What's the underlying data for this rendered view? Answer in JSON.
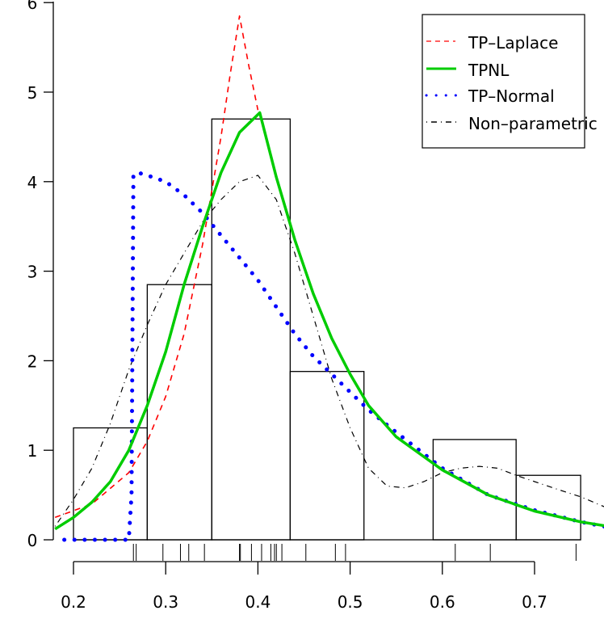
{
  "chart_data": {
    "type": "bar",
    "title": "",
    "xlabel": "",
    "ylabel": "",
    "xlim": [
      0.18,
      0.78
    ],
    "ylim": [
      0,
      6
    ],
    "x_ticks": [
      "0.2",
      "0.3",
      "0.4",
      "0.5",
      "0.6",
      "0.7"
    ],
    "y_ticks": [
      "0",
      "1",
      "2",
      "3",
      "4",
      "5",
      "6"
    ],
    "grid": false,
    "legend_position": "top-right",
    "histogram": {
      "bin_edges": [
        0.2,
        0.28,
        0.35,
        0.435,
        0.515,
        0.59,
        0.68,
        0.75
      ],
      "densities": [
        1.25,
        2.85,
        4.7,
        1.88,
        0,
        1.12,
        0.72
      ]
    },
    "rug": [
      0.265,
      0.268,
      0.297,
      0.316,
      0.325,
      0.342,
      0.38,
      0.381,
      0.393,
      0.404,
      0.414,
      0.418,
      0.42,
      0.426,
      0.452,
      0.484,
      0.495,
      0.614,
      0.652,
      0.745
    ],
    "series": [
      {
        "name": "TP–Laplace",
        "style": "dashed",
        "color": "#ff0000",
        "x": [
          0.18,
          0.22,
          0.26,
          0.28,
          0.3,
          0.32,
          0.34,
          0.36,
          0.37,
          0.38,
          0.39,
          0.4
        ],
        "y": [
          0.25,
          0.4,
          0.75,
          1.1,
          1.6,
          2.3,
          3.3,
          4.5,
          5.2,
          5.85,
          5.3,
          4.8
        ]
      },
      {
        "name": "TPNL",
        "style": "solid",
        "color": "#00cc00",
        "x": [
          0.18,
          0.2,
          0.22,
          0.24,
          0.26,
          0.28,
          0.3,
          0.32,
          0.34,
          0.36,
          0.38,
          0.4,
          0.402,
          0.42,
          0.44,
          0.46,
          0.48,
          0.5,
          0.52,
          0.55,
          0.6,
          0.65,
          0.7,
          0.75,
          0.78
        ],
        "y": [
          0.12,
          0.25,
          0.42,
          0.65,
          1.0,
          1.5,
          2.1,
          2.85,
          3.5,
          4.1,
          4.55,
          4.75,
          4.77,
          4.05,
          3.35,
          2.75,
          2.25,
          1.85,
          1.5,
          1.15,
          0.78,
          0.5,
          0.32,
          0.2,
          0.15
        ]
      },
      {
        "name": "TP–Normal",
        "style": "dotted",
        "color": "#0000ff",
        "x": [
          0.19,
          0.2,
          0.22,
          0.24,
          0.26,
          0.263,
          0.265,
          0.27,
          0.28,
          0.3,
          0.32,
          0.34,
          0.36,
          0.38,
          0.4,
          0.42,
          0.44,
          0.46,
          0.48,
          0.5,
          0.52,
          0.55,
          0.6,
          0.65,
          0.7,
          0.75,
          0.78
        ],
        "y": [
          0,
          0,
          0,
          0,
          0,
          0.5,
          4.08,
          4.1,
          4.07,
          4.0,
          3.85,
          3.65,
          3.4,
          3.15,
          2.9,
          2.6,
          2.3,
          2.05,
          1.85,
          1.65,
          1.45,
          1.2,
          0.8,
          0.5,
          0.33,
          0.2,
          0.14
        ]
      },
      {
        "name": "Non–parametric",
        "style": "dotdash",
        "color": "#000000",
        "x": [
          0.18,
          0.2,
          0.22,
          0.24,
          0.26,
          0.28,
          0.3,
          0.32,
          0.34,
          0.36,
          0.38,
          0.4,
          0.42,
          0.44,
          0.46,
          0.48,
          0.5,
          0.52,
          0.54,
          0.56,
          0.58,
          0.6,
          0.62,
          0.64,
          0.66,
          0.68,
          0.7,
          0.72,
          0.75,
          0.78
        ],
        "y": [
          0.15,
          0.45,
          0.8,
          1.3,
          1.9,
          2.4,
          2.85,
          3.2,
          3.55,
          3.8,
          4.0,
          4.07,
          3.8,
          3.2,
          2.5,
          1.8,
          1.25,
          0.8,
          0.6,
          0.58,
          0.65,
          0.75,
          0.8,
          0.82,
          0.8,
          0.72,
          0.65,
          0.58,
          0.48,
          0.35
        ]
      }
    ]
  },
  "legend": {
    "items": [
      {
        "label": "TP–Laplace"
      },
      {
        "label": "TPNL"
      },
      {
        "label": "TP–Normal"
      },
      {
        "label": "Non–parametric"
      }
    ]
  },
  "axes": {
    "y_labels": [
      "0",
      "1",
      "2",
      "3",
      "4",
      "5",
      "6"
    ],
    "x_labels": [
      "0.2",
      "0.3",
      "0.4",
      "0.5",
      "0.6",
      "0.7"
    ]
  }
}
